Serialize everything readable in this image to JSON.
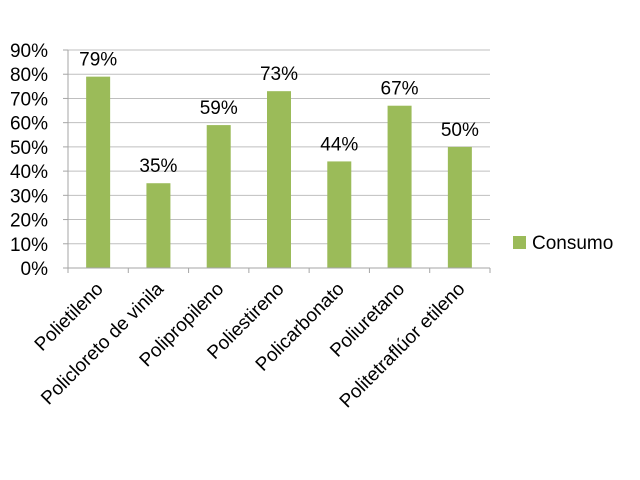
{
  "chart_data": {
    "type": "bar",
    "categories": [
      "Polietileno",
      "Policloreto de vinila",
      "Polipropileno",
      "Poliestireno",
      "Policarbonato",
      "Poliuretano",
      "Politetraflúor etileno"
    ],
    "series": [
      {
        "name": "Consumo",
        "values": [
          79,
          35,
          59,
          73,
          44,
          67,
          50
        ],
        "color": "#9bbb59"
      }
    ],
    "data_labels": [
      "79%",
      "35%",
      "59%",
      "73%",
      "44%",
      "67%",
      "50%"
    ],
    "yticks": [
      "0%",
      "10%",
      "20%",
      "30%",
      "40%",
      "50%",
      "60%",
      "70%",
      "80%",
      "90%"
    ],
    "ylim": [
      0,
      90
    ],
    "grid": true,
    "legend_position": "right"
  }
}
